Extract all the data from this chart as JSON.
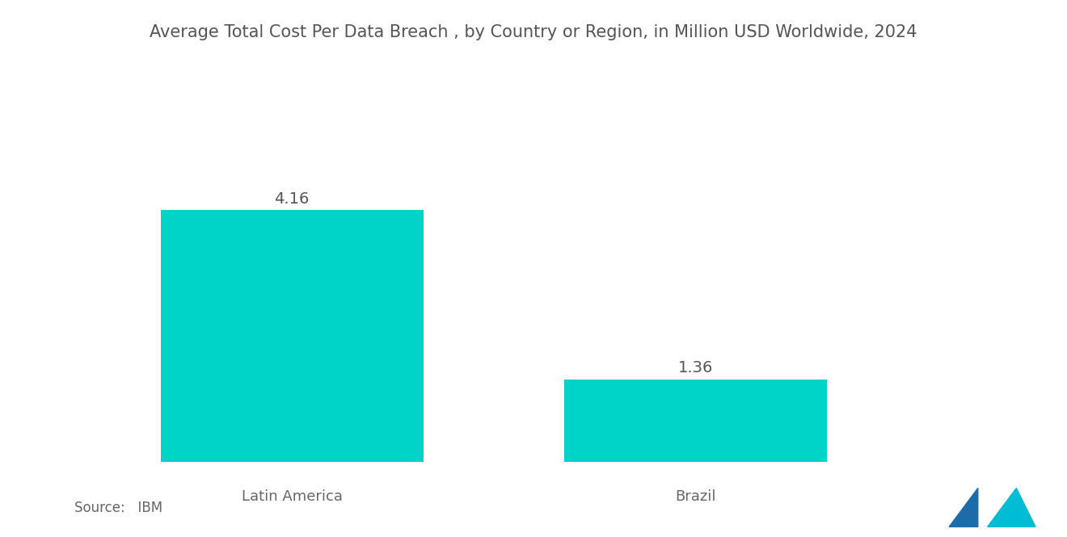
{
  "title": "Average Total Cost Per Data Breach , by Country or Region, in Million USD Worldwide, 2024",
  "categories": [
    "Latin America",
    "Brazil"
  ],
  "values": [
    4.16,
    1.36
  ],
  "bar_color": "#00D4C8",
  "value_labels": [
    "4.16",
    "1.36"
  ],
  "background_color": "#ffffff",
  "title_fontsize": 15,
  "label_fontsize": 13,
  "value_fontsize": 14,
  "source_text": "Source:   IBM",
  "source_fontsize": 12,
  "ylim": [
    0,
    5.5
  ],
  "bar_width": 0.28,
  "title_color": "#555555",
  "label_color": "#666666",
  "value_color": "#555555",
  "x_positions": [
    0.22,
    0.65
  ],
  "logo_colors": [
    "#1B6CA8",
    "#00BCD4"
  ]
}
